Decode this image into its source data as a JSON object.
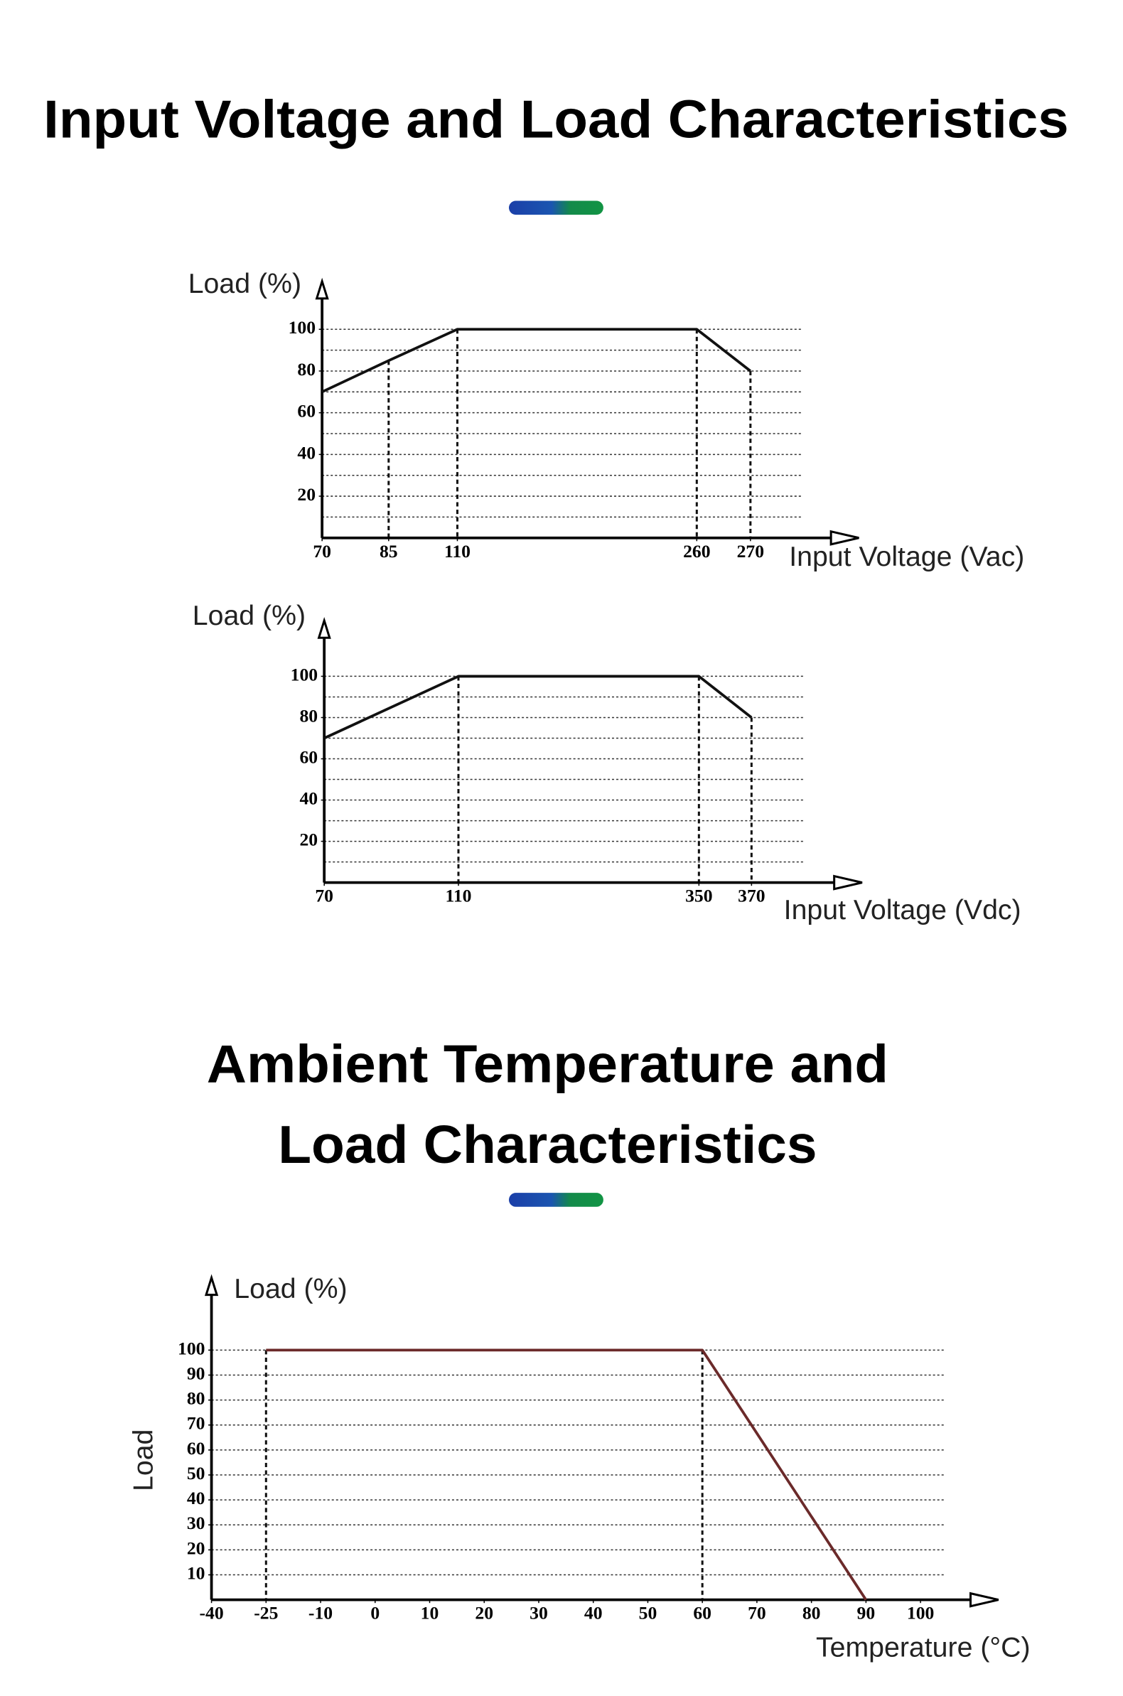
{
  "headings": [
    [
      "Input Voltage and Load Characteristics"
    ],
    [
      "Ambient Temperature and",
      "Load Characteristics"
    ]
  ],
  "chart_data": [
    {
      "type": "line",
      "y_label": "Load (%)",
      "x_label": "Input Voltage (Vac)",
      "x": [
        70,
        85,
        110,
        260,
        270
      ],
      "values": [
        70,
        85,
        100,
        100,
        80
      ],
      "color": "#111111",
      "xlim": [
        70,
        270
      ],
      "xticks": [
        70,
        85,
        110,
        260,
        270
      ],
      "ylim": [
        0,
        123
      ],
      "yticks": [
        20,
        40,
        60,
        80,
        100
      ],
      "grid_lines": [
        10,
        20,
        30,
        40,
        50,
        60,
        70,
        80,
        90,
        100
      ],
      "drop_lines": true
    },
    {
      "type": "line",
      "y_label": "Load (%)",
      "x_label": "Input Voltage (Vdc)",
      "x": [
        70,
        110,
        350,
        370
      ],
      "values": [
        70,
        100,
        100,
        80
      ],
      "color": "#111111",
      "xlim": [
        70,
        370
      ],
      "xticks": [
        70,
        110,
        350,
        370
      ],
      "ylim": [
        0,
        127
      ],
      "yticks": [
        20,
        40,
        60,
        80,
        100
      ],
      "grid_lines": [
        10,
        20,
        30,
        40,
        50,
        60,
        70,
        80,
        90,
        100
      ],
      "drop_lines": true
    },
    {
      "type": "line",
      "y_label": "Load (%)",
      "y_title": "Load",
      "x_label": "Temperature (°C)",
      "x": [
        -25,
        60,
        90
      ],
      "values": [
        100,
        100,
        0
      ],
      "color": "#6b2a2a",
      "xlim": [
        -40,
        100
      ],
      "xticks": [
        -40,
        -25,
        -10,
        0,
        10,
        20,
        30,
        40,
        50,
        60,
        70,
        80,
        90,
        100
      ],
      "ylim": [
        0,
        129
      ],
      "yticks": [
        10,
        20,
        30,
        40,
        50,
        60,
        70,
        80,
        90,
        100
      ],
      "grid_lines": [
        10,
        20,
        30,
        40,
        50,
        60,
        70,
        80,
        90,
        100
      ],
      "drop_lines": true
    }
  ]
}
